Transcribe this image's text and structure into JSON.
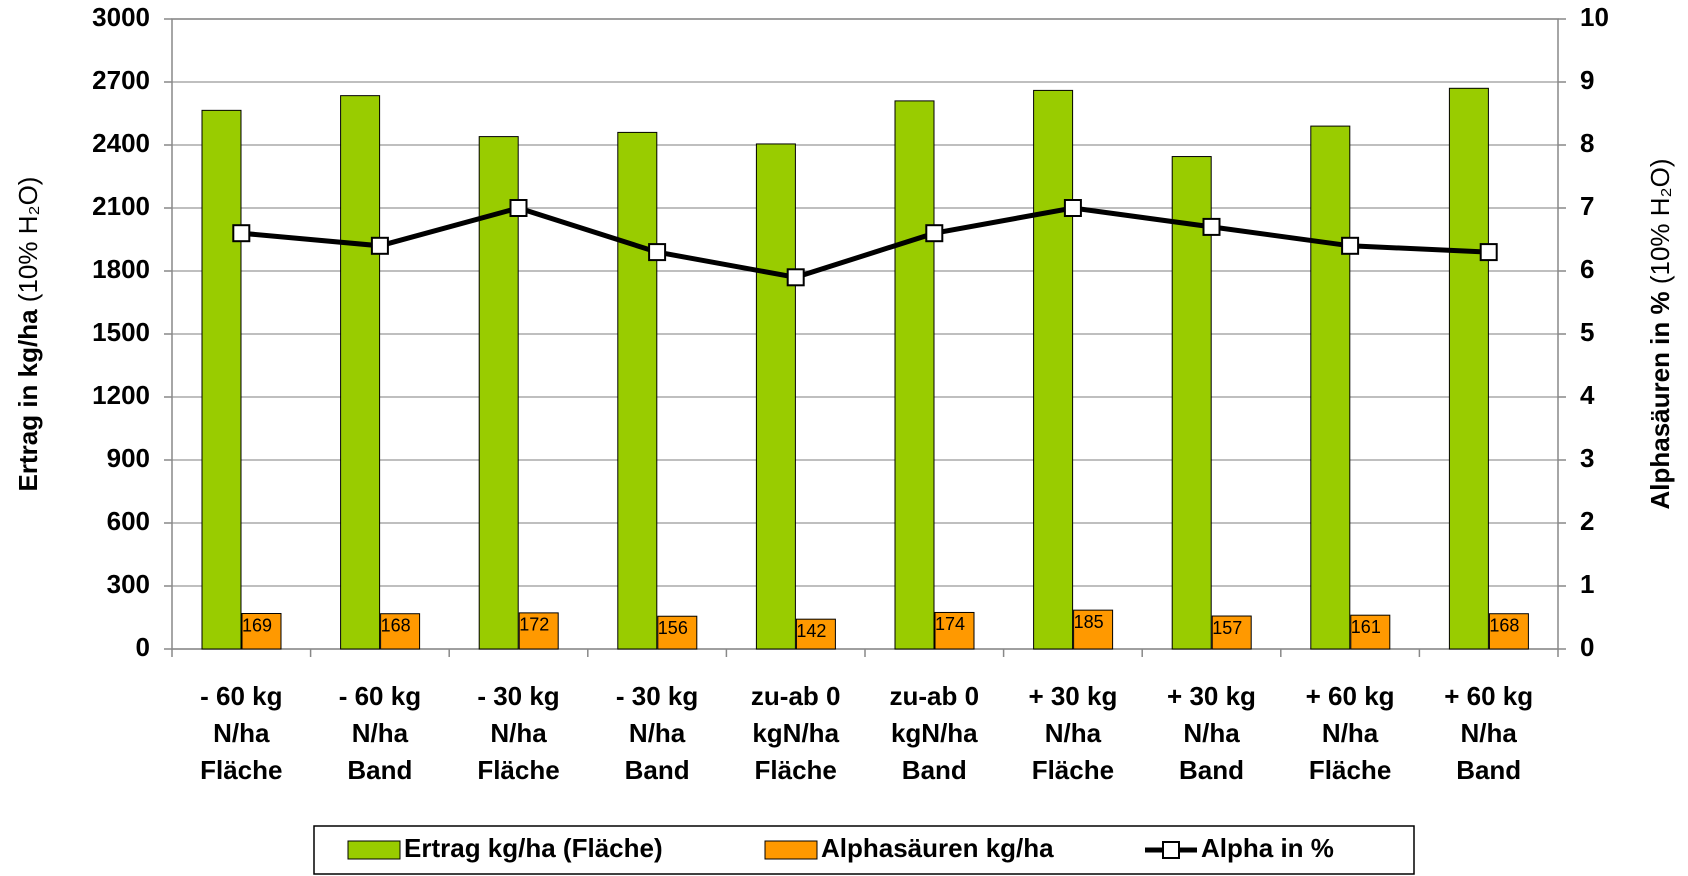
{
  "chart_data": {
    "type": "bar_line",
    "categories": [
      "- 60 kg\nN/ha\nFläche",
      "- 60 kg\nN/ha\nBand",
      "- 30 kg\nN/ha\nFläche",
      "- 30 kg\nN/ha\nBand",
      "zu-ab 0\nkgN/ha\nFläche",
      "zu-ab 0\nkgN/ha\nBand",
      "+ 30 kg\nN/ha\nFläche",
      "+ 30 kg\nN/ha\nBand",
      "+ 60 kg\nN/ha\nFläche",
      "+ 60 kg\nN/ha\nBand"
    ],
    "y_label": "Ertrag in kg/ha",
    "y_label_note": "(10% H₂O)",
    "y2_label": "Alphasäuren in %",
    "y2_label_note": "(10% H₂O)",
    "ylim": [
      0,
      3000
    ],
    "yticks": [
      0,
      300,
      600,
      900,
      1200,
      1500,
      1800,
      2100,
      2400,
      2700,
      3000
    ],
    "y2lim": [
      0,
      10
    ],
    "y2ticks": [
      0,
      1,
      2,
      3,
      4,
      5,
      6,
      7,
      8,
      9,
      10
    ],
    "grid": true,
    "series": [
      {
        "name": "Ertrag kg/ha (Fläche)",
        "color": "#99cc00",
        "kind": "bar",
        "values": [
          2565,
          2635,
          2440,
          2460,
          2405,
          2610,
          2660,
          2345,
          2490,
          2670
        ]
      },
      {
        "name": "Alphasäuren kg/ha",
        "color": "#ff9900",
        "kind": "bar",
        "values": [
          169,
          168,
          172,
          156,
          142,
          174,
          185,
          157,
          161,
          168
        ]
      },
      {
        "name": "Alpha in %",
        "color": "#000000",
        "kind": "line",
        "axis": "y2",
        "values": [
          6.6,
          6.4,
          7.0,
          6.3,
          5.9,
          6.6,
          7.0,
          6.7,
          6.4,
          6.3
        ]
      }
    ]
  }
}
